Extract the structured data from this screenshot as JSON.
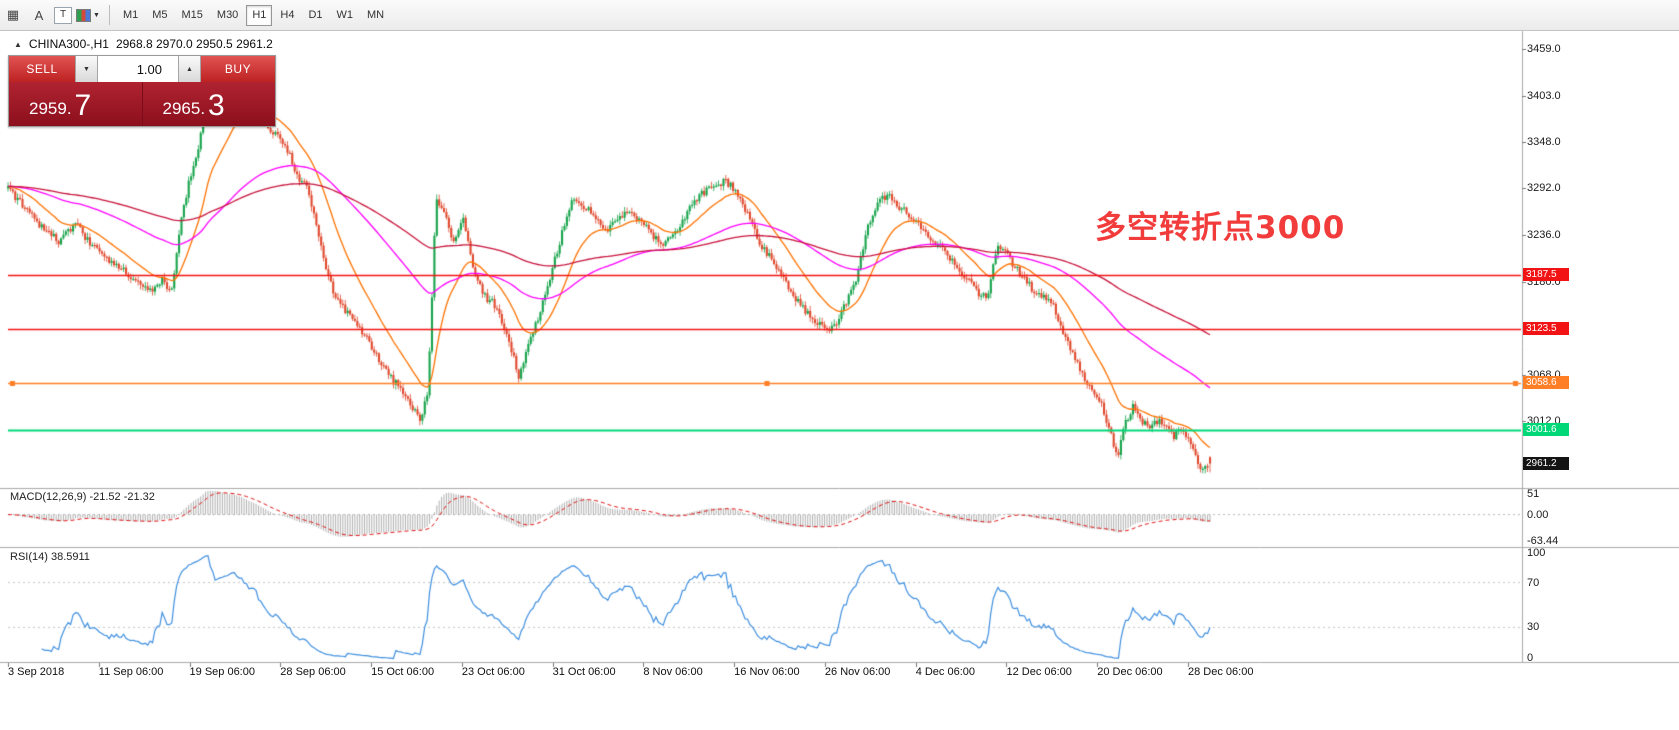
{
  "glyphs": {
    "grid": "▦",
    "letter_a": "A",
    "letter_t": "T",
    "caret_down": "▼",
    "spin_down": "▼",
    "spin_up": "▲",
    "triangle_up": "▲"
  },
  "toolbar": {
    "timeframes": [
      "M1",
      "M5",
      "M15",
      "M30",
      "H1",
      "H4",
      "D1",
      "W1",
      "MN"
    ],
    "active_timeframe": "H1"
  },
  "header": {
    "symbol": "CHINA300-,H1",
    "ohlc": "2968.8 2970.0 2950.5 2961.2"
  },
  "trade_panel": {
    "sell_label": "SELL",
    "buy_label": "BUY",
    "volume": "1.00",
    "sell_price_small": "2959.",
    "sell_price_big": "7",
    "buy_price_small": "2965.",
    "buy_price_big": "3"
  },
  "annotation": {
    "text": "多空转折点3000",
    "color": "#f23c3c"
  },
  "price_axis": {
    "ticks": [
      {
        "label": "3459.0",
        "price": 3459.0
      },
      {
        "label": "3403.0",
        "price": 3403.0
      },
      {
        "label": "3348.0",
        "price": 3348.0
      },
      {
        "label": "3292.0",
        "price": 3292.0
      },
      {
        "label": "3236.0",
        "price": 3236.0
      },
      {
        "label": "3180.0",
        "price": 3180.0
      },
      {
        "label": "3068.0",
        "price": 3068.0
      },
      {
        "label": "3012.0",
        "price": 3012.0
      }
    ],
    "badges": [
      {
        "label": "3187.5",
        "price": 3187.5,
        "bg": "#f21414",
        "fg": "#ffffff",
        "name": "resistance-badge-3187"
      },
      {
        "label": "3123.5",
        "price": 3123.5,
        "bg": "#f21414",
        "fg": "#ffffff",
        "name": "resistance-badge-3123"
      },
      {
        "label": "3058.6",
        "price": 3058.6,
        "bg": "#ff7f27",
        "fg": "#ffffff",
        "name": "support-badge-3058"
      },
      {
        "label": "3001.6",
        "price": 3001.6,
        "bg": "#00d878",
        "fg": "#ffffff",
        "name": "support-badge-3001"
      },
      {
        "label": "2961.2",
        "price": 2961.2,
        "bg": "#141414",
        "fg": "#ffffff",
        "name": "current-price-badge"
      }
    ]
  },
  "indicators": {
    "macd": {
      "label": "MACD(12,26,9) -21.52 -21.32",
      "axis": [
        {
          "label": "51",
          "value": 51
        },
        {
          "label": "0.00",
          "value": 0
        },
        {
          "label": "-63.44",
          "value": -63.44
        }
      ]
    },
    "rsi": {
      "label": "RSI(14) 38.5911",
      "axis": [
        {
          "label": "100",
          "value": 100
        },
        {
          "label": "70",
          "value": 70
        },
        {
          "label": "30",
          "value": 30
        },
        {
          "label": "0",
          "value": 0
        }
      ]
    }
  },
  "time_axis": [
    "3 Sep 2018",
    "11 Sep 06:00",
    "19 Sep 06:00",
    "28 Sep 06:00",
    "15 Oct 06:00",
    "23 Oct 06:00",
    "31 Oct 06:00",
    "8 Nov 06:00",
    "16 Nov 06:00",
    "26 Nov 06:00",
    "4 Dec 06:00",
    "12 Dec 06:00",
    "20 Dec 06:00",
    "28 Dec 06:00"
  ],
  "chart_data": {
    "type": "candlestick",
    "symbol": "CHINA300-",
    "timeframe": "H1",
    "current": {
      "open": 2968.8,
      "high": 2970.0,
      "low": 2950.5,
      "close": 2961.2,
      "bid": 2959.7,
      "ask": 2965.3
    },
    "y_axis_range": [
      2933,
      3480
    ],
    "horizontal_lines": [
      {
        "price": 3187.5,
        "color": "#f21414",
        "width": 1.4,
        "handles": false
      },
      {
        "price": 3123.5,
        "color": "#f21414",
        "width": 1.4,
        "handles": false
      },
      {
        "price": 3058.6,
        "color": "#ff7f27",
        "width": 1.6,
        "handles": true
      },
      {
        "price": 3001.6,
        "color": "#00d878",
        "width": 2,
        "handles": false
      }
    ],
    "colors": {
      "bull": "#18a44c",
      "bear": "#e0492e",
      "ma_fast": "#ff7200",
      "ma_mid": "#ff00ff",
      "ma_slow": "#c8143c",
      "macd_hist": "#9a9a9a",
      "macd_signal": "#e01010",
      "rsi": "#3f8fdf"
    },
    "moving_averages": [
      {
        "period": 21,
        "color_key": "ma_fast"
      },
      {
        "period": 90,
        "color_key": "ma_mid"
      },
      {
        "period": 200,
        "color_key": "ma_slow"
      }
    ],
    "macd_params": [
      12,
      26,
      9
    ],
    "macd_display_range": [
      51,
      -63.44
    ],
    "rsi_period": 14,
    "rsi_levels": [
      70,
      30
    ],
    "num_candles": 500,
    "price_path": [
      [
        8,
        3292
      ],
      [
        25,
        3268
      ],
      [
        45,
        3240
      ],
      [
        60,
        3228
      ],
      [
        76,
        3250
      ],
      [
        92,
        3222
      ],
      [
        106,
        3210
      ],
      [
        120,
        3196
      ],
      [
        138,
        3178
      ],
      [
        152,
        3166
      ],
      [
        163,
        3184
      ],
      [
        171,
        3162
      ],
      [
        179,
        3238
      ],
      [
        189,
        3300
      ],
      [
        199,
        3344
      ],
      [
        207,
        3426
      ],
      [
        215,
        3382
      ],
      [
        224,
        3396
      ],
      [
        233,
        3420
      ],
      [
        244,
        3406
      ],
      [
        256,
        3394
      ],
      [
        266,
        3366
      ],
      [
        276,
        3358
      ],
      [
        286,
        3344
      ],
      [
        296,
        3308
      ],
      [
        306,
        3296
      ],
      [
        318,
        3242
      ],
      [
        328,
        3186
      ],
      [
        339,
        3152
      ],
      [
        350,
        3140
      ],
      [
        361,
        3122
      ],
      [
        372,
        3100
      ],
      [
        382,
        3082
      ],
      [
        392,
        3062
      ],
      [
        402,
        3050
      ],
      [
        412,
        3030
      ],
      [
        420,
        3010
      ],
      [
        428,
        3050
      ],
      [
        436,
        3280
      ],
      [
        445,
        3260
      ],
      [
        453,
        3228
      ],
      [
        463,
        3256
      ],
      [
        473,
        3198
      ],
      [
        483,
        3164
      ],
      [
        493,
        3154
      ],
      [
        503,
        3128
      ],
      [
        513,
        3092
      ],
      [
        519,
        3064
      ],
      [
        527,
        3102
      ],
      [
        537,
        3132
      ],
      [
        549,
        3182
      ],
      [
        561,
        3234
      ],
      [
        573,
        3284
      ],
      [
        583,
        3272
      ],
      [
        593,
        3260
      ],
      [
        605,
        3240
      ],
      [
        617,
        3252
      ],
      [
        629,
        3268
      ],
      [
        641,
        3252
      ],
      [
        653,
        3234
      ],
      [
        665,
        3226
      ],
      [
        677,
        3242
      ],
      [
        689,
        3266
      ],
      [
        701,
        3284
      ],
      [
        713,
        3294
      ],
      [
        725,
        3302
      ],
      [
        737,
        3288
      ],
      [
        749,
        3256
      ],
      [
        761,
        3224
      ],
      [
        773,
        3204
      ],
      [
        785,
        3180
      ],
      [
        797,
        3158
      ],
      [
        809,
        3140
      ],
      [
        821,
        3128
      ],
      [
        833,
        3122
      ],
      [
        845,
        3152
      ],
      [
        857,
        3184
      ],
      [
        867,
        3244
      ],
      [
        877,
        3274
      ],
      [
        887,
        3284
      ],
      [
        897,
        3272
      ],
      [
        907,
        3262
      ],
      [
        917,
        3250
      ],
      [
        929,
        3232
      ],
      [
        941,
        3220
      ],
      [
        953,
        3202
      ],
      [
        965,
        3186
      ],
      [
        977,
        3168
      ],
      [
        987,
        3158
      ],
      [
        997,
        3226
      ],
      [
        1005,
        3216
      ],
      [
        1013,
        3200
      ],
      [
        1023,
        3186
      ],
      [
        1033,
        3170
      ],
      [
        1043,
        3162
      ],
      [
        1053,
        3150
      ],
      [
        1061,
        3126
      ],
      [
        1069,
        3104
      ],
      [
        1077,
        3082
      ],
      [
        1085,
        3062
      ],
      [
        1093,
        3050
      ],
      [
        1101,
        3034
      ],
      [
        1109,
        3004
      ],
      [
        1117,
        2966
      ],
      [
        1125,
        3008
      ],
      [
        1133,
        3030
      ],
      [
        1141,
        3014
      ],
      [
        1149,
        3002
      ],
      [
        1157,
        3012
      ],
      [
        1165,
        3008
      ],
      [
        1173,
        2992
      ],
      [
        1181,
        3002
      ],
      [
        1189,
        2986
      ],
      [
        1195,
        2972
      ],
      [
        1201,
        2950
      ],
      [
        1206,
        2960
      ],
      [
        1210,
        2961
      ]
    ]
  }
}
